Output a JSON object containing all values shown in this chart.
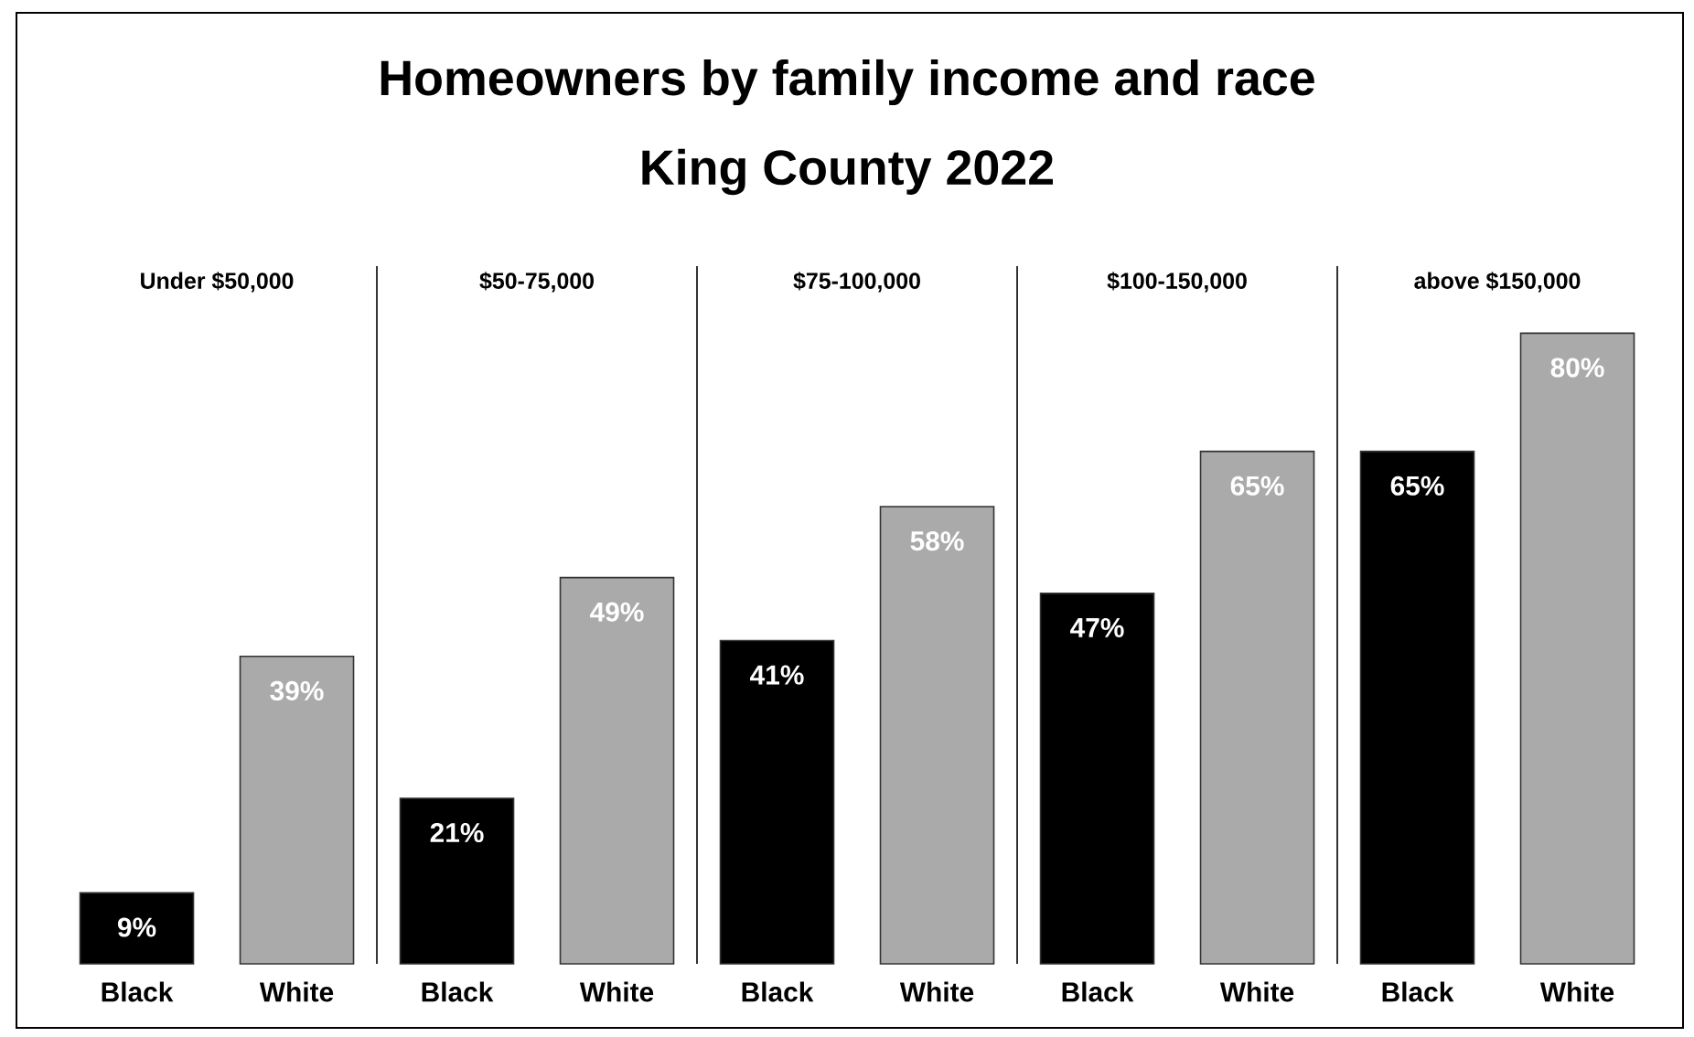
{
  "chart_data": {
    "type": "bar",
    "title": "Homeowners by family income and race",
    "subtitle": "King County 2022",
    "categories": [
      "Black",
      "White",
      "Black",
      "White",
      "Black",
      "White",
      "Black",
      "White",
      "Black",
      "White"
    ],
    "values": [
      9,
      39,
      21,
      49,
      41,
      58,
      47,
      65,
      65,
      80
    ],
    "value_labels": [
      "9%",
      "39%",
      "21%",
      "49%",
      "41%",
      "58%",
      "47%",
      "65%",
      "65%",
      "80%"
    ],
    "colors": [
      "#000000",
      "#aaaaaa",
      "#000000",
      "#aaaaaa",
      "#000000",
      "#aaaaaa",
      "#000000",
      "#aaaaaa",
      "#000000",
      "#aaaaaa"
    ],
    "annotations": [
      "Under $50,000",
      "$50-75,000",
      "$75-100,000",
      "$100-150,000",
      "above $150,000"
    ]
  }
}
